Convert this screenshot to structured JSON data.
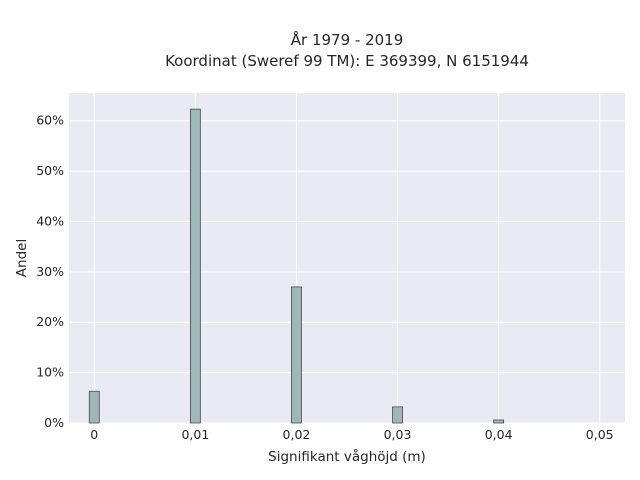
{
  "chart_data": {
    "type": "bar",
    "title_line1": "År 1979 - 2019",
    "title_line2": "Koordinat (Sweref 99 TM): E 369399, N 6151944",
    "xlabel": "Signifikant våghöjd (m)",
    "ylabel": "Andel",
    "x": [
      0,
      0.01,
      0.02,
      0.03,
      0.04
    ],
    "values": [
      6.3,
      62.3,
      27.0,
      3.2,
      0.6
    ],
    "xlim": [
      -0.0025,
      0.0525
    ],
    "ylim": [
      0,
      65.5
    ],
    "x_ticks": [
      {
        "value": 0,
        "label": "0"
      },
      {
        "value": 0.01,
        "label": "0,01"
      },
      {
        "value": 0.02,
        "label": "0,02"
      },
      {
        "value": 0.03,
        "label": "0,03"
      },
      {
        "value": 0.04,
        "label": "0,04"
      },
      {
        "value": 0.05,
        "label": "0,05"
      }
    ],
    "y_ticks": [
      {
        "value": 0,
        "label": "0%"
      },
      {
        "value": 10,
        "label": "10%"
      },
      {
        "value": 20,
        "label": "20%"
      },
      {
        "value": 30,
        "label": "30%"
      },
      {
        "value": 40,
        "label": "40%"
      },
      {
        "value": 50,
        "label": "50%"
      },
      {
        "value": 60,
        "label": "60%"
      }
    ],
    "grid": true,
    "colors": {
      "bar_fill": "#9fb7b8",
      "bar_edge": "#4a4a4a",
      "plot_background": "#eaeaf2",
      "grid": "#ffffff"
    }
  }
}
